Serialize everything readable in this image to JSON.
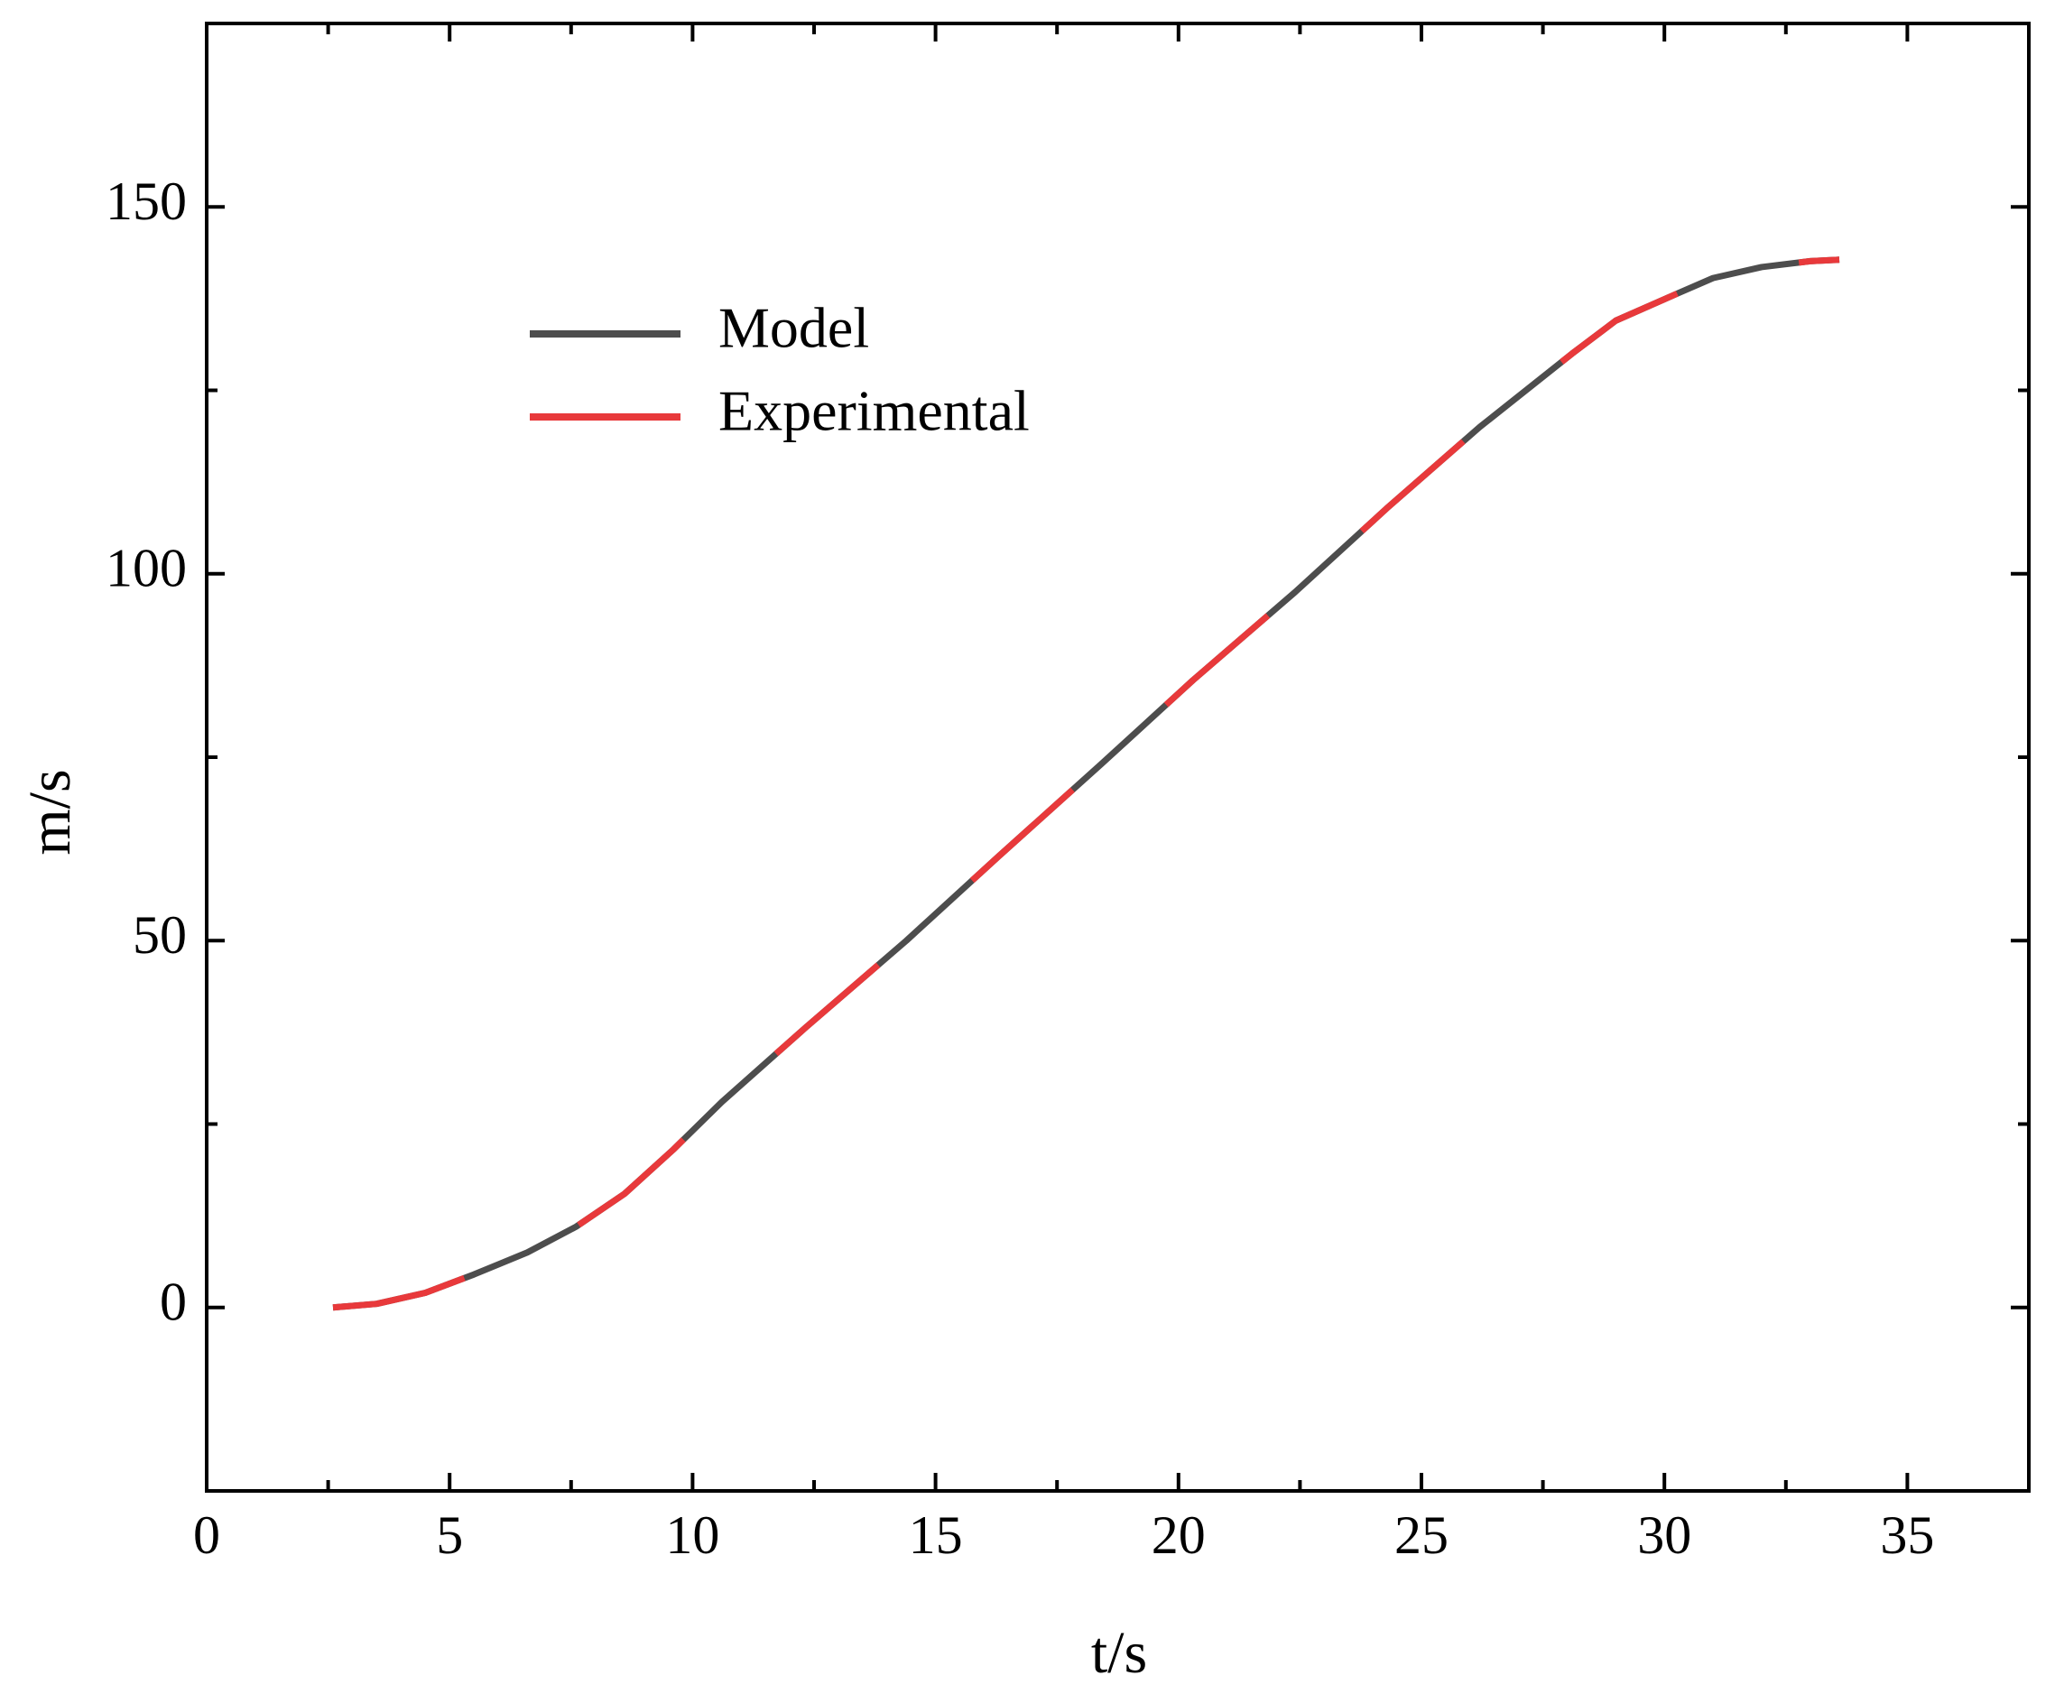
{
  "chart_data": {
    "type": "line",
    "x_label": "t/s",
    "y_label": "m/s",
    "x": [
      2.6,
      3.5,
      4.5,
      5.5,
      6.6,
      7.6,
      8.6,
      9.6,
      10.6,
      12.3,
      14.4,
      16.3,
      18.4,
      20.3,
      22.4,
      24.3,
      26.2,
      28.1,
      29,
      30.2,
      31,
      32,
      33,
      33.6
    ],
    "series": [
      {
        "name": "Model",
        "color": "#4d4d4d",
        "style": "solid",
        "values": [
          0,
          0.5,
          2,
          4.5,
          7.5,
          11,
          15.5,
          21.5,
          28,
          38,
          50,
          61.5,
          74,
          85.5,
          97.5,
          109,
          120,
          130,
          134.5,
          138,
          140.3,
          141.8,
          142.6,
          142.8
        ]
      },
      {
        "name": "Experimental",
        "color": "#e8393b",
        "style": "dashed",
        "values": [
          0,
          0.5,
          2,
          4.5,
          7.5,
          11,
          15.5,
          21.5,
          28,
          38,
          50,
          61.5,
          74,
          85.5,
          97.5,
          109,
          120,
          130,
          134.5,
          138,
          140.3,
          141.8,
          142.6,
          142.8
        ]
      }
    ],
    "xlim": [
      0,
      37.5
    ],
    "xticks": [
      0,
      5,
      10,
      15,
      20,
      25,
      30,
      35
    ],
    "ylim": [
      -25,
      175
    ],
    "yticks": [
      0,
      50,
      100,
      150
    ],
    "grid": false,
    "legend": "upper left"
  }
}
